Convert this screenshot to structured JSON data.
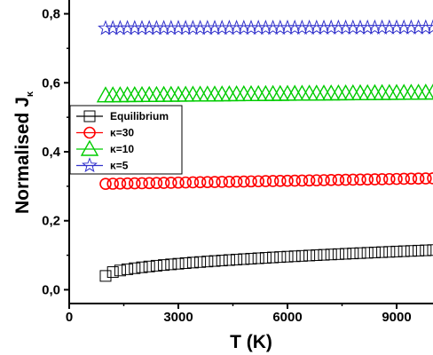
{
  "chart_data": {
    "type": "scatter",
    "xlabel": "T (K)",
    "ylabel_main": "Normalised J",
    "ylabel_sub": "κ",
    "xlim": [
      0,
      10000
    ],
    "ylim": [
      -0.04,
      0.84
    ],
    "x_ticks": [
      0,
      3000,
      6000,
      9000
    ],
    "x_tick_labels": [
      "0",
      "3000",
      "6000",
      "9000"
    ],
    "y_ticks": [
      0.0,
      0.2,
      0.4,
      0.6,
      0.8
    ],
    "y_tick_labels": [
      "0,0",
      "0,2",
      "0,4",
      "0,6",
      "0,8"
    ],
    "grid": false,
    "legend_position": "center-left",
    "x_start": 1000,
    "x_end": 10000,
    "x_step": 200,
    "series": [
      {
        "name": "Equilibrium",
        "color": "#000000",
        "marker": "square",
        "y_start": 0.04,
        "y_end": 0.115,
        "shape": "sqrt"
      },
      {
        "name": "κ=30",
        "color": "#ff0000",
        "marker": "circle",
        "y_start": 0.307,
        "y_end": 0.323,
        "shape": "linear"
      },
      {
        "name": "κ=10",
        "color": "#00cc00",
        "marker": "triangle",
        "y_start": 0.563,
        "y_end": 0.571,
        "shape": "linear"
      },
      {
        "name": "κ=5",
        "color": "#3333cc",
        "marker": "star",
        "y_start": 0.758,
        "y_end": 0.76,
        "shape": "linear"
      }
    ]
  }
}
